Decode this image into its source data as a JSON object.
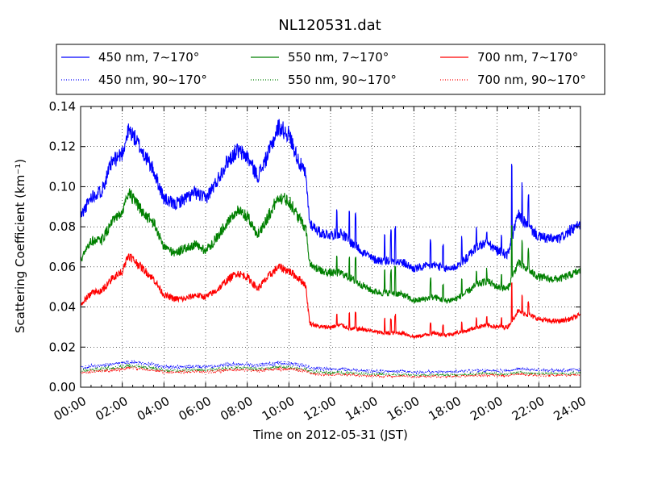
{
  "chart_data": {
    "type": "line",
    "title": "NL120531.dat",
    "xlabel": "Time on 2012-05-31 (JST)",
    "ylabel": "Scattering Coefficient (km⁻¹)",
    "xlim": [
      "00:00",
      "24:00"
    ],
    "ylim": [
      0.0,
      0.14
    ],
    "x_tick_labels": [
      "00:00",
      "02:00",
      "04:00",
      "06:00",
      "08:00",
      "10:00",
      "12:00",
      "14:00",
      "16:00",
      "18:00",
      "20:00",
      "22:00",
      "24:00"
    ],
    "y_tick_labels": [
      "0.00",
      "0.02",
      "0.04",
      "0.06",
      "0.08",
      "0.10",
      "0.12",
      "0.14"
    ],
    "grid": true,
    "legend_position": "top",
    "x_hours": [
      0,
      0.5,
      1,
      1.5,
      2,
      2.3,
      2.5,
      3,
      3.5,
      4,
      4.5,
      5,
      5.5,
      6,
      6.5,
      7,
      7.5,
      8,
      8.5,
      9,
      9.5,
      10,
      10.5,
      10.8,
      11,
      11.5,
      12,
      12.5,
      13,
      13.5,
      14,
      14.5,
      15,
      15.5,
      16,
      16.5,
      17,
      17.5,
      18,
      18.5,
      19,
      19.5,
      20,
      20.5,
      21,
      21.5,
      22,
      22.5,
      23,
      23.5,
      24
    ],
    "series": [
      {
        "name": "450 nm, 7∼170°",
        "color": "#0000ff",
        "style": "solid",
        "values": [
          0.085,
          0.095,
          0.098,
          0.112,
          0.117,
          0.128,
          0.126,
          0.117,
          0.108,
          0.094,
          0.091,
          0.094,
          0.097,
          0.094,
          0.102,
          0.112,
          0.118,
          0.115,
          0.105,
          0.116,
          0.13,
          0.126,
          0.112,
          0.106,
          0.082,
          0.077,
          0.076,
          0.077,
          0.072,
          0.068,
          0.064,
          0.063,
          0.063,
          0.062,
          0.059,
          0.06,
          0.061,
          0.059,
          0.06,
          0.064,
          0.07,
          0.072,
          0.068,
          0.066,
          0.086,
          0.08,
          0.075,
          0.074,
          0.074,
          0.078,
          0.081
        ]
      },
      {
        "name": "550 nm, 7∼170°",
        "color": "#008000",
        "style": "solid",
        "values": [
          0.063,
          0.073,
          0.073,
          0.082,
          0.087,
          0.098,
          0.094,
          0.087,
          0.082,
          0.07,
          0.067,
          0.069,
          0.071,
          0.068,
          0.074,
          0.082,
          0.088,
          0.085,
          0.076,
          0.085,
          0.095,
          0.093,
          0.084,
          0.08,
          0.062,
          0.058,
          0.057,
          0.057,
          0.054,
          0.051,
          0.048,
          0.047,
          0.047,
          0.046,
          0.043,
          0.044,
          0.045,
          0.043,
          0.044,
          0.047,
          0.051,
          0.053,
          0.05,
          0.049,
          0.062,
          0.058,
          0.055,
          0.054,
          0.054,
          0.056,
          0.058
        ]
      },
      {
        "name": "700 nm, 7∼170°",
        "color": "#ff0000",
        "style": "solid",
        "values": [
          0.041,
          0.047,
          0.048,
          0.054,
          0.058,
          0.066,
          0.064,
          0.059,
          0.054,
          0.046,
          0.044,
          0.044,
          0.046,
          0.045,
          0.048,
          0.053,
          0.057,
          0.055,
          0.049,
          0.055,
          0.06,
          0.058,
          0.054,
          0.051,
          0.032,
          0.03,
          0.03,
          0.031,
          0.029,
          0.029,
          0.028,
          0.027,
          0.027,
          0.027,
          0.025,
          0.026,
          0.027,
          0.026,
          0.027,
          0.028,
          0.03,
          0.031,
          0.03,
          0.03,
          0.038,
          0.036,
          0.034,
          0.033,
          0.033,
          0.034,
          0.036
        ]
      },
      {
        "name": "450 nm, 90∼170°",
        "color": "#0000ff",
        "style": "dotted",
        "values": [
          0.0095,
          0.0105,
          0.0108,
          0.0115,
          0.012,
          0.0128,
          0.0126,
          0.012,
          0.0112,
          0.0102,
          0.01,
          0.0102,
          0.0104,
          0.0102,
          0.0106,
          0.0112,
          0.0116,
          0.0114,
          0.0108,
          0.0114,
          0.0121,
          0.0119,
          0.0112,
          0.0108,
          0.0096,
          0.0092,
          0.009,
          0.009,
          0.0087,
          0.0083,
          0.008,
          0.0079,
          0.0079,
          0.0078,
          0.0075,
          0.0076,
          0.0077,
          0.0076,
          0.0077,
          0.0079,
          0.0083,
          0.0085,
          0.0082,
          0.0081,
          0.0092,
          0.0088,
          0.0085,
          0.0084,
          0.0084,
          0.0086,
          0.0088
        ]
      },
      {
        "name": "550 nm, 90∼170°",
        "color": "#008000",
        "style": "dotted",
        "values": [
          0.008,
          0.0088,
          0.009,
          0.0096,
          0.01,
          0.0108,
          0.0106,
          0.01,
          0.0094,
          0.0085,
          0.0083,
          0.0085,
          0.0086,
          0.0085,
          0.0088,
          0.0094,
          0.0097,
          0.0095,
          0.009,
          0.0095,
          0.0101,
          0.01,
          0.0094,
          0.009,
          0.0078,
          0.0074,
          0.0072,
          0.0072,
          0.007,
          0.0067,
          0.0064,
          0.0063,
          0.0063,
          0.0062,
          0.006,
          0.0061,
          0.0062,
          0.0061,
          0.0062,
          0.0064,
          0.0067,
          0.0069,
          0.0066,
          0.0065,
          0.0074,
          0.0071,
          0.0068,
          0.0067,
          0.0067,
          0.0069,
          0.0071
        ]
      },
      {
        "name": "700 nm, 90∼170°",
        "color": "#ff0000",
        "style": "dotted",
        "values": [
          0.007,
          0.0078,
          0.008,
          0.0086,
          0.009,
          0.0098,
          0.0096,
          0.009,
          0.0084,
          0.0076,
          0.0074,
          0.0076,
          0.0077,
          0.0076,
          0.0079,
          0.0084,
          0.0087,
          0.0085,
          0.0081,
          0.0085,
          0.0091,
          0.009,
          0.0084,
          0.0081,
          0.0068,
          0.0064,
          0.0062,
          0.0062,
          0.0061,
          0.0058,
          0.0056,
          0.0055,
          0.0055,
          0.0054,
          0.0052,
          0.0053,
          0.0054,
          0.0053,
          0.0054,
          0.0056,
          0.0058,
          0.006,
          0.0058,
          0.0057,
          0.0064,
          0.0062,
          0.006,
          0.0059,
          0.0059,
          0.006,
          0.0062
        ]
      }
    ]
  }
}
